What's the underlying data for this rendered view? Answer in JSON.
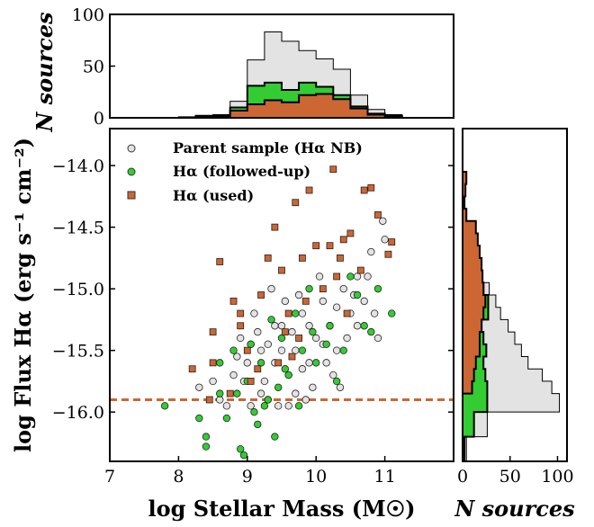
{
  "chart_data": [
    {
      "id": "top-hist",
      "type": "bar",
      "xlabel": "",
      "ylabel": "N sources",
      "xlim": [
        7,
        12
      ],
      "ylim": [
        0,
        100
      ],
      "bin_edges": [
        8.0,
        8.25,
        8.5,
        8.75,
        9.0,
        9.25,
        9.5,
        9.75,
        10.0,
        10.25,
        10.5,
        10.75,
        11.0,
        11.25
      ],
      "series": [
        {
          "name": "Parent sample (Hα NB)",
          "color": "#e3e3e3",
          "values": [
            1,
            2,
            3,
            16,
            56,
            83,
            74,
            65,
            57,
            47,
            22,
            8,
            3
          ]
        },
        {
          "name": "Hα (followed-up)",
          "color": "#33cc33",
          "values": [
            0,
            2,
            2,
            10,
            31,
            34,
            27,
            34,
            30,
            22,
            11,
            4,
            2
          ]
        },
        {
          "name": "Hα (used)",
          "color": "#cc6633",
          "values": [
            0,
            1,
            1,
            7,
            13,
            17,
            15,
            22,
            23,
            18,
            9,
            3,
            1
          ]
        }
      ],
      "y_ticks": [
        "0",
        "50",
        "100"
      ]
    },
    {
      "id": "scatter",
      "type": "scatter",
      "xlabel": "log Stellar Mass (M☉)",
      "ylabel": "log Flux Hα (erg s⁻¹ cm⁻²)",
      "xlim": [
        7,
        12
      ],
      "ylim": [
        -16.4,
        -13.7
      ],
      "x_ticks": [
        "7",
        "8",
        "9",
        "10",
        "11"
      ],
      "y_ticks": [
        "−14.0",
        "−14.5",
        "−15.0",
        "−15.5",
        "−16.0"
      ],
      "threshold_line": {
        "y": -15.9,
        "style": "dashed",
        "color": "#cc6633"
      },
      "legend": {
        "position": "top-left",
        "entries": [
          {
            "label": "Parent sample (Hα NB)",
            "marker": "circle",
            "color": "#e3e3e3"
          },
          {
            "label": "Hα (followed-up)",
            "marker": "circle",
            "color": "#33cc33"
          },
          {
            "label": "Hα (used)",
            "marker": "square",
            "color": "#cc6633"
          }
        ]
      },
      "series": [
        {
          "name": "Parent sample (Hα NB)",
          "marker": "circle",
          "color": "#e3e3e3",
          "points": [
            [
              8.3,
              -15.8
            ],
            [
              8.6,
              -15.9
            ],
            [
              8.8,
              -15.7
            ],
            [
              8.9,
              -15.4
            ],
            [
              9.0,
              -15.6
            ],
            [
              9.1,
              -15.2
            ],
            [
              9.2,
              -15.5
            ],
            [
              9.3,
              -15.9
            ],
            [
              9.4,
              -15.6
            ],
            [
              9.5,
              -15.3
            ],
            [
              9.6,
              -15.7
            ],
            [
              9.7,
              -15.5
            ],
            [
              9.8,
              -15.2
            ],
            [
              9.9,
              -15.6
            ],
            [
              10.0,
              -15.4
            ],
            [
              10.1,
              -15.1
            ],
            [
              10.2,
              -15.3
            ],
            [
              10.3,
              -15.5
            ],
            [
              10.4,
              -15.0
            ],
            [
              10.5,
              -15.2
            ],
            [
              10.6,
              -14.9
            ],
            [
              10.7,
              -15.1
            ],
            [
              10.8,
              -14.7
            ],
            [
              10.9,
              -15.4
            ],
            [
              11.0,
              -14.6
            ],
            [
              10.97,
              -14.45
            ],
            [
              9.35,
              -15.0
            ],
            [
              9.55,
              -15.1
            ],
            [
              9.75,
              -15.05
            ],
            [
              10.05,
              -14.9
            ],
            [
              8.7,
              -15.95
            ],
            [
              9.05,
              -15.95
            ],
            [
              9.45,
              -15.95
            ],
            [
              9.85,
              -15.9
            ],
            [
              10.25,
              -15.7
            ],
            [
              9.15,
              -15.35
            ],
            [
              9.65,
              -15.35
            ],
            [
              10.15,
              -15.6
            ],
            [
              10.45,
              -15.4
            ],
            [
              8.95,
              -15.75
            ],
            [
              9.25,
              -15.75
            ],
            [
              9.95,
              -15.8
            ],
            [
              10.35,
              -15.8
            ],
            [
              9.5,
              -15.5
            ],
            [
              9.9,
              -15.3
            ],
            [
              10.6,
              -15.3
            ],
            [
              9.3,
              -15.45
            ],
            [
              8.5,
              -15.75
            ],
            [
              10.75,
              -14.9
            ],
            [
              9.6,
              -15.95
            ],
            [
              9.4,
              -15.3
            ],
            [
              10.1,
              -15.45
            ],
            [
              9.7,
              -15.85
            ],
            [
              8.85,
              -15.55
            ],
            [
              10.55,
              -15.05
            ],
            [
              9.2,
              -15.85
            ],
            [
              9.8,
              -15.65
            ],
            [
              10.3,
              -15.15
            ],
            [
              10.85,
              -15.2
            ],
            [
              9.05,
              -15.45
            ]
          ]
        },
        {
          "name": "Hα (followed-up)",
          "marker": "circle",
          "color": "#33cc33",
          "points": [
            [
              7.8,
              -15.95
            ],
            [
              8.3,
              -16.05
            ],
            [
              8.4,
              -16.2
            ],
            [
              8.4,
              -16.28
            ],
            [
              8.6,
              -15.85
            ],
            [
              8.7,
              -16.05
            ],
            [
              8.8,
              -15.5
            ],
            [
              8.9,
              -16.3
            ],
            [
              8.95,
              -16.35
            ],
            [
              9.0,
              -15.75
            ],
            [
              9.1,
              -16.0
            ],
            [
              9.15,
              -16.1
            ],
            [
              9.2,
              -15.6
            ],
            [
              9.3,
              -15.9
            ],
            [
              9.4,
              -16.2
            ],
            [
              9.5,
              -15.4
            ],
            [
              9.6,
              -15.7
            ],
            [
              9.7,
              -15.2
            ],
            [
              9.8,
              -15.5
            ],
            [
              9.9,
              -15.0
            ],
            [
              10.0,
              -15.6
            ],
            [
              10.2,
              -15.3
            ],
            [
              10.4,
              -15.5
            ],
            [
              10.5,
              -14.9
            ],
            [
              10.7,
              -15.3
            ],
            [
              10.9,
              -15.0
            ],
            [
              11.1,
              -15.2
            ],
            [
              10.6,
              -15.05
            ],
            [
              9.35,
              -15.25
            ],
            [
              8.85,
              -15.85
            ],
            [
              9.05,
              -15.45
            ],
            [
              9.55,
              -15.65
            ],
            [
              10.15,
              -15.45
            ],
            [
              9.75,
              -15.95
            ],
            [
              9.25,
              -15.95
            ],
            [
              10.3,
              -15.75
            ],
            [
              8.6,
              -15.6
            ],
            [
              9.45,
              -15.8
            ],
            [
              9.95,
              -15.35
            ],
            [
              10.8,
              -15.35
            ]
          ]
        },
        {
          "name": "Hα (used)",
          "marker": "square",
          "color": "#cc6633",
          "points": [
            [
              8.2,
              -15.65
            ],
            [
              8.5,
              -15.6
            ],
            [
              8.5,
              -15.35
            ],
            [
              8.6,
              -14.78
            ],
            [
              8.8,
              -15.1
            ],
            [
              8.9,
              -15.3
            ],
            [
              9.0,
              -15.5
            ],
            [
              9.2,
              -15.05
            ],
            [
              9.3,
              -14.75
            ],
            [
              9.4,
              -14.5
            ],
            [
              9.5,
              -14.85
            ],
            [
              9.6,
              -15.2
            ],
            [
              9.7,
              -14.3
            ],
            [
              9.8,
              -14.75
            ],
            [
              9.9,
              -14.2
            ],
            [
              10.0,
              -14.65
            ],
            [
              10.2,
              -14.65
            ],
            [
              10.3,
              -14.9
            ],
            [
              10.4,
              -14.6
            ],
            [
              10.5,
              -14.55
            ],
            [
              10.7,
              -14.2
            ],
            [
              10.8,
              -14.18
            ],
            [
              10.9,
              -14.4
            ],
            [
              11.1,
              -14.62
            ],
            [
              11.05,
              -14.72
            ],
            [
              10.25,
              -14.03
            ],
            [
              9.45,
              -15.6
            ],
            [
              9.65,
              -15.55
            ],
            [
              8.75,
              -15.85
            ],
            [
              9.05,
              -15.75
            ],
            [
              9.85,
              -15.1
            ],
            [
              10.45,
              -15.2
            ],
            [
              10.65,
              -14.85
            ],
            [
              9.55,
              -15.35
            ],
            [
              10.1,
              -15.0
            ],
            [
              9.15,
              -15.65
            ],
            [
              8.9,
              -15.2
            ],
            [
              10.35,
              -14.75
            ],
            [
              9.75,
              -15.4
            ],
            [
              8.45,
              -15.9
            ]
          ]
        }
      ]
    },
    {
      "id": "right-hist",
      "type": "bar",
      "orientation": "horizontal",
      "xlabel": "N sources",
      "ylabel": "",
      "xlim": [
        0,
        110
      ],
      "bin_edges": [
        -16.4,
        -16.2,
        -16.0,
        -15.85,
        -15.75,
        -15.65,
        -15.55,
        -15.45,
        -15.35,
        -15.25,
        -15.15,
        -15.05,
        -14.95,
        -14.85,
        -14.75,
        -14.65,
        -14.55,
        -14.45,
        -14.35,
        -14.25,
        -14.15,
        -14.05
      ],
      "series": [
        {
          "name": "Parent sample (Hα NB)",
          "color": "#e3e3e3",
          "values": [
            4,
            26,
            102,
            94,
            84,
            69,
            62,
            55,
            48,
            40,
            35,
            28,
            21,
            14,
            9,
            6,
            3,
            2,
            2,
            2,
            1
          ]
        },
        {
          "name": "Hα (followed-up)",
          "color": "#33cc33",
          "values": [
            2,
            12,
            26,
            26,
            24,
            22,
            25,
            22,
            20,
            27,
            27,
            22,
            14,
            8,
            5,
            2,
            1,
            1,
            1,
            0,
            0
          ]
        },
        {
          "name": "Hα (used)",
          "color": "#cc6633",
          "values": [
            0,
            0,
            0,
            10,
            12,
            14,
            18,
            18,
            20,
            22,
            24,
            22,
            21,
            20,
            18,
            16,
            14,
            4,
            2,
            3,
            4
          ]
        }
      ],
      "x_ticks": [
        "0",
        "50",
        "100"
      ]
    }
  ]
}
